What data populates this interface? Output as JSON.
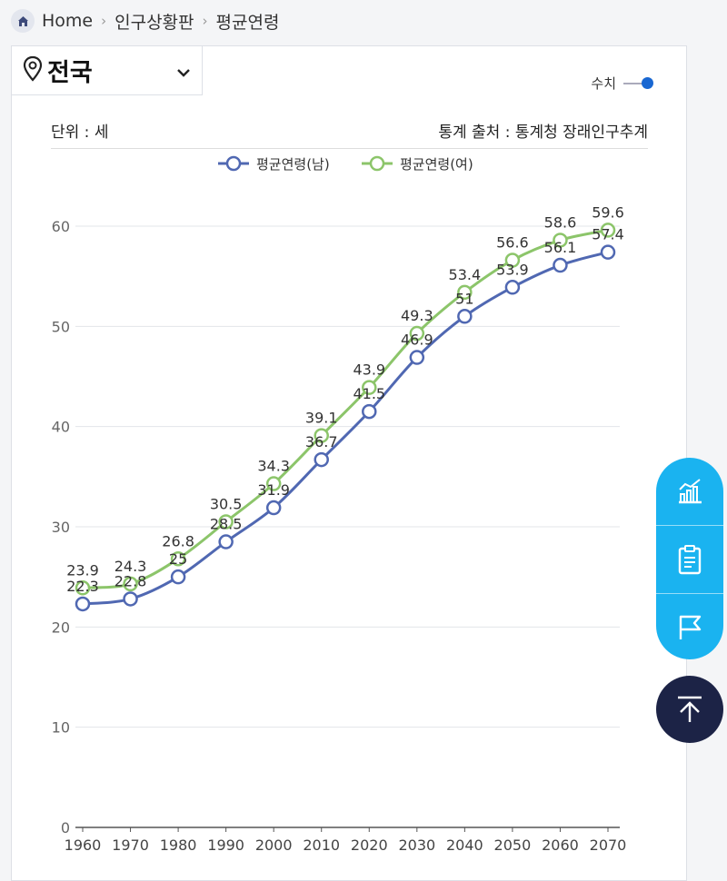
{
  "breadcrumb": {
    "home": "Home",
    "level1": "인구상황판",
    "level2": "평균연령"
  },
  "region": {
    "name": "전국"
  },
  "toggle": {
    "label": "수치"
  },
  "unit_label": "단위 : 세",
  "source_label": "통계 출처 : 통계청 장래인구추계",
  "colors": {
    "male": "#5068b2",
    "female": "#8cc56a",
    "accent": "#1967d2",
    "fab": "#1ab3f0",
    "top_button": "#1c2346"
  },
  "chart_data": {
    "type": "line",
    "x": [
      "1960",
      "1970",
      "1980",
      "1990",
      "2000",
      "2010",
      "2020",
      "2030",
      "2040",
      "2050",
      "2060",
      "2070"
    ],
    "series": [
      {
        "name": "평균연령(남)",
        "values": [
          22.3,
          22.8,
          25,
          28.5,
          31.9,
          36.7,
          41.5,
          46.9,
          51,
          53.9,
          56.1,
          57.4
        ],
        "labels": [
          "22.3",
          "22.8",
          "25",
          "28.5",
          "31.9",
          "36.7",
          "41.5",
          "46.9",
          "51",
          "53.9",
          "56.1",
          "57.4"
        ]
      },
      {
        "name": "평균연령(여)",
        "values": [
          23.9,
          24.3,
          26.8,
          30.5,
          34.3,
          39.1,
          43.9,
          49.3,
          53.4,
          56.6,
          58.6,
          59.6
        ],
        "labels": [
          "23.9",
          "24.3",
          "26.8",
          "30.5",
          "34.3",
          "39.1",
          "43.9",
          "49.3",
          "53.4",
          "56.6",
          "58.6",
          "59.6"
        ]
      }
    ],
    "yticks": [
      "0",
      "10",
      "20",
      "30",
      "40",
      "50",
      "60"
    ],
    "ylim": [
      0,
      60
    ],
    "grid": true,
    "legend": "top-center"
  }
}
